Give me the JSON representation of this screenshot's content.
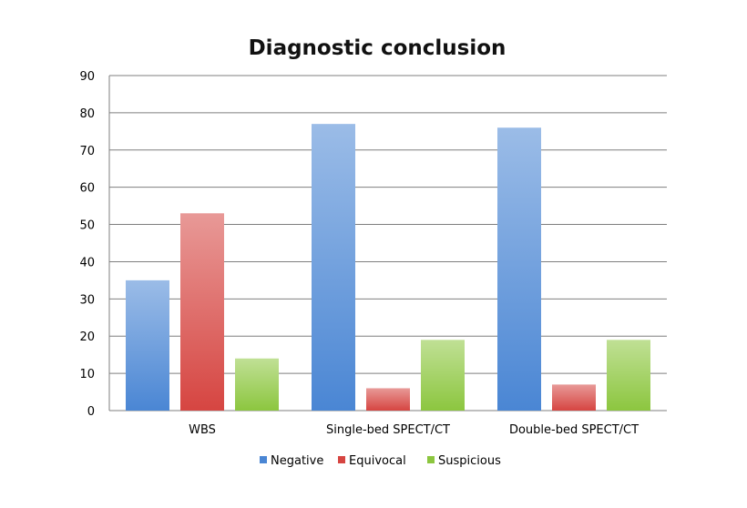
{
  "chart_data": {
    "type": "bar",
    "title": "Diagnostic conclusion",
    "xlabel": "",
    "ylabel": "",
    "ylim": [
      0,
      90
    ],
    "yticks": [
      0,
      10,
      20,
      30,
      40,
      50,
      60,
      70,
      80,
      90
    ],
    "grid": true,
    "legend_position": "bottom",
    "categories": [
      "WBS",
      "Single-bed SPECT/CT",
      "Double-bed SPECT/CT"
    ],
    "series": [
      {
        "name": "Negative",
        "values": [
          35,
          77,
          76
        ],
        "color": "#4a86d4"
      },
      {
        "name": "Equivocal",
        "values": [
          53,
          6,
          7
        ],
        "color": "#d64541"
      },
      {
        "name": "Suspicious",
        "values": [
          14,
          19,
          19
        ],
        "color": "#8cc63f"
      }
    ]
  }
}
